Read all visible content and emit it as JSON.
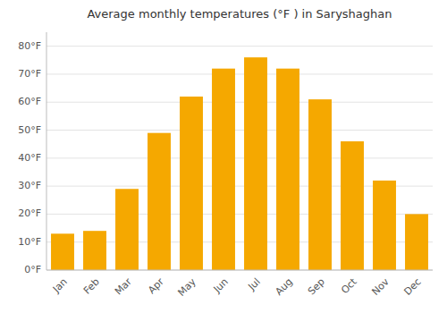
{
  "chart_data": {
    "type": "bar",
    "title": "Average monthly temperatures (°F ) in Saryshaghan",
    "categories": [
      "Jan",
      "Feb",
      "Mar",
      "Apr",
      "May",
      "Jun",
      "Jul",
      "Aug",
      "Sep",
      "Oct",
      "Nov",
      "Dec"
    ],
    "values": [
      13,
      14,
      29,
      49,
      62,
      72,
      76,
      72,
      61,
      46,
      32,
      20
    ],
    "color": "#F5A800",
    "ylim": [
      0,
      85
    ],
    "yticks": [
      {
        "value": 0,
        "label": "0°F"
      },
      {
        "value": 10,
        "label": "10°F"
      },
      {
        "value": 20,
        "label": "20°F"
      },
      {
        "value": 30,
        "label": "30°F"
      },
      {
        "value": 40,
        "label": "40°F"
      },
      {
        "value": 50,
        "label": "50°F"
      },
      {
        "value": 60,
        "label": "60°F"
      },
      {
        "value": 70,
        "label": "70°F"
      },
      {
        "value": 80,
        "label": "80°F"
      }
    ],
    "grid": true
  }
}
